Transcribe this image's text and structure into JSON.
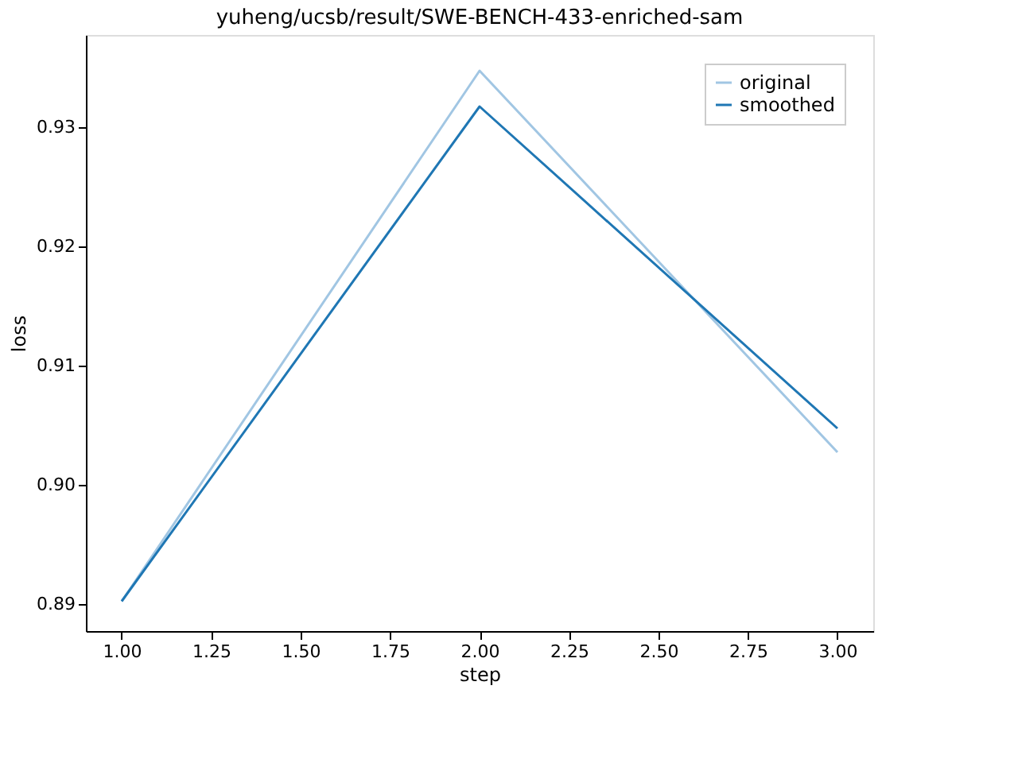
{
  "chart_data": {
    "type": "line",
    "title": "yuheng/ucsb/result/SWE-BENCH-433-enriched-sam",
    "xlabel": "step",
    "ylabel": "loss",
    "x": [
      1,
      2,
      3
    ],
    "series": [
      {
        "name": "original",
        "color": "#a1c6e3",
        "values": [
          0.8902,
          0.9347,
          0.9027
        ]
      },
      {
        "name": "smoothed",
        "color": "#1f77b4",
        "values": [
          0.8902,
          0.9317,
          0.9047
        ]
      }
    ],
    "xlim": [
      0.9,
      3.1
    ],
    "xticks": [
      {
        "value": 1,
        "label": "1.00"
      },
      {
        "value": 1.25,
        "label": "1.25"
      },
      {
        "value": 1.5,
        "label": "1.50"
      },
      {
        "value": 1.75,
        "label": "1.75"
      },
      {
        "value": 2,
        "label": "2.00"
      },
      {
        "value": 2.25,
        "label": "2.25"
      },
      {
        "value": 2.5,
        "label": "2.50"
      },
      {
        "value": 2.75,
        "label": "2.75"
      },
      {
        "value": 3,
        "label": "3.00"
      }
    ],
    "ylim": [
      0.8877,
      0.9377
    ],
    "yticks": [
      {
        "value": 0.89,
        "label": "0.89"
      },
      {
        "value": 0.9,
        "label": "0.90"
      },
      {
        "value": 0.91,
        "label": "0.91"
      },
      {
        "value": 0.92,
        "label": "0.92"
      },
      {
        "value": 0.93,
        "label": "0.93"
      }
    ],
    "legend": "top right",
    "grid": false,
    "marker": "none",
    "line_style": "solid"
  }
}
